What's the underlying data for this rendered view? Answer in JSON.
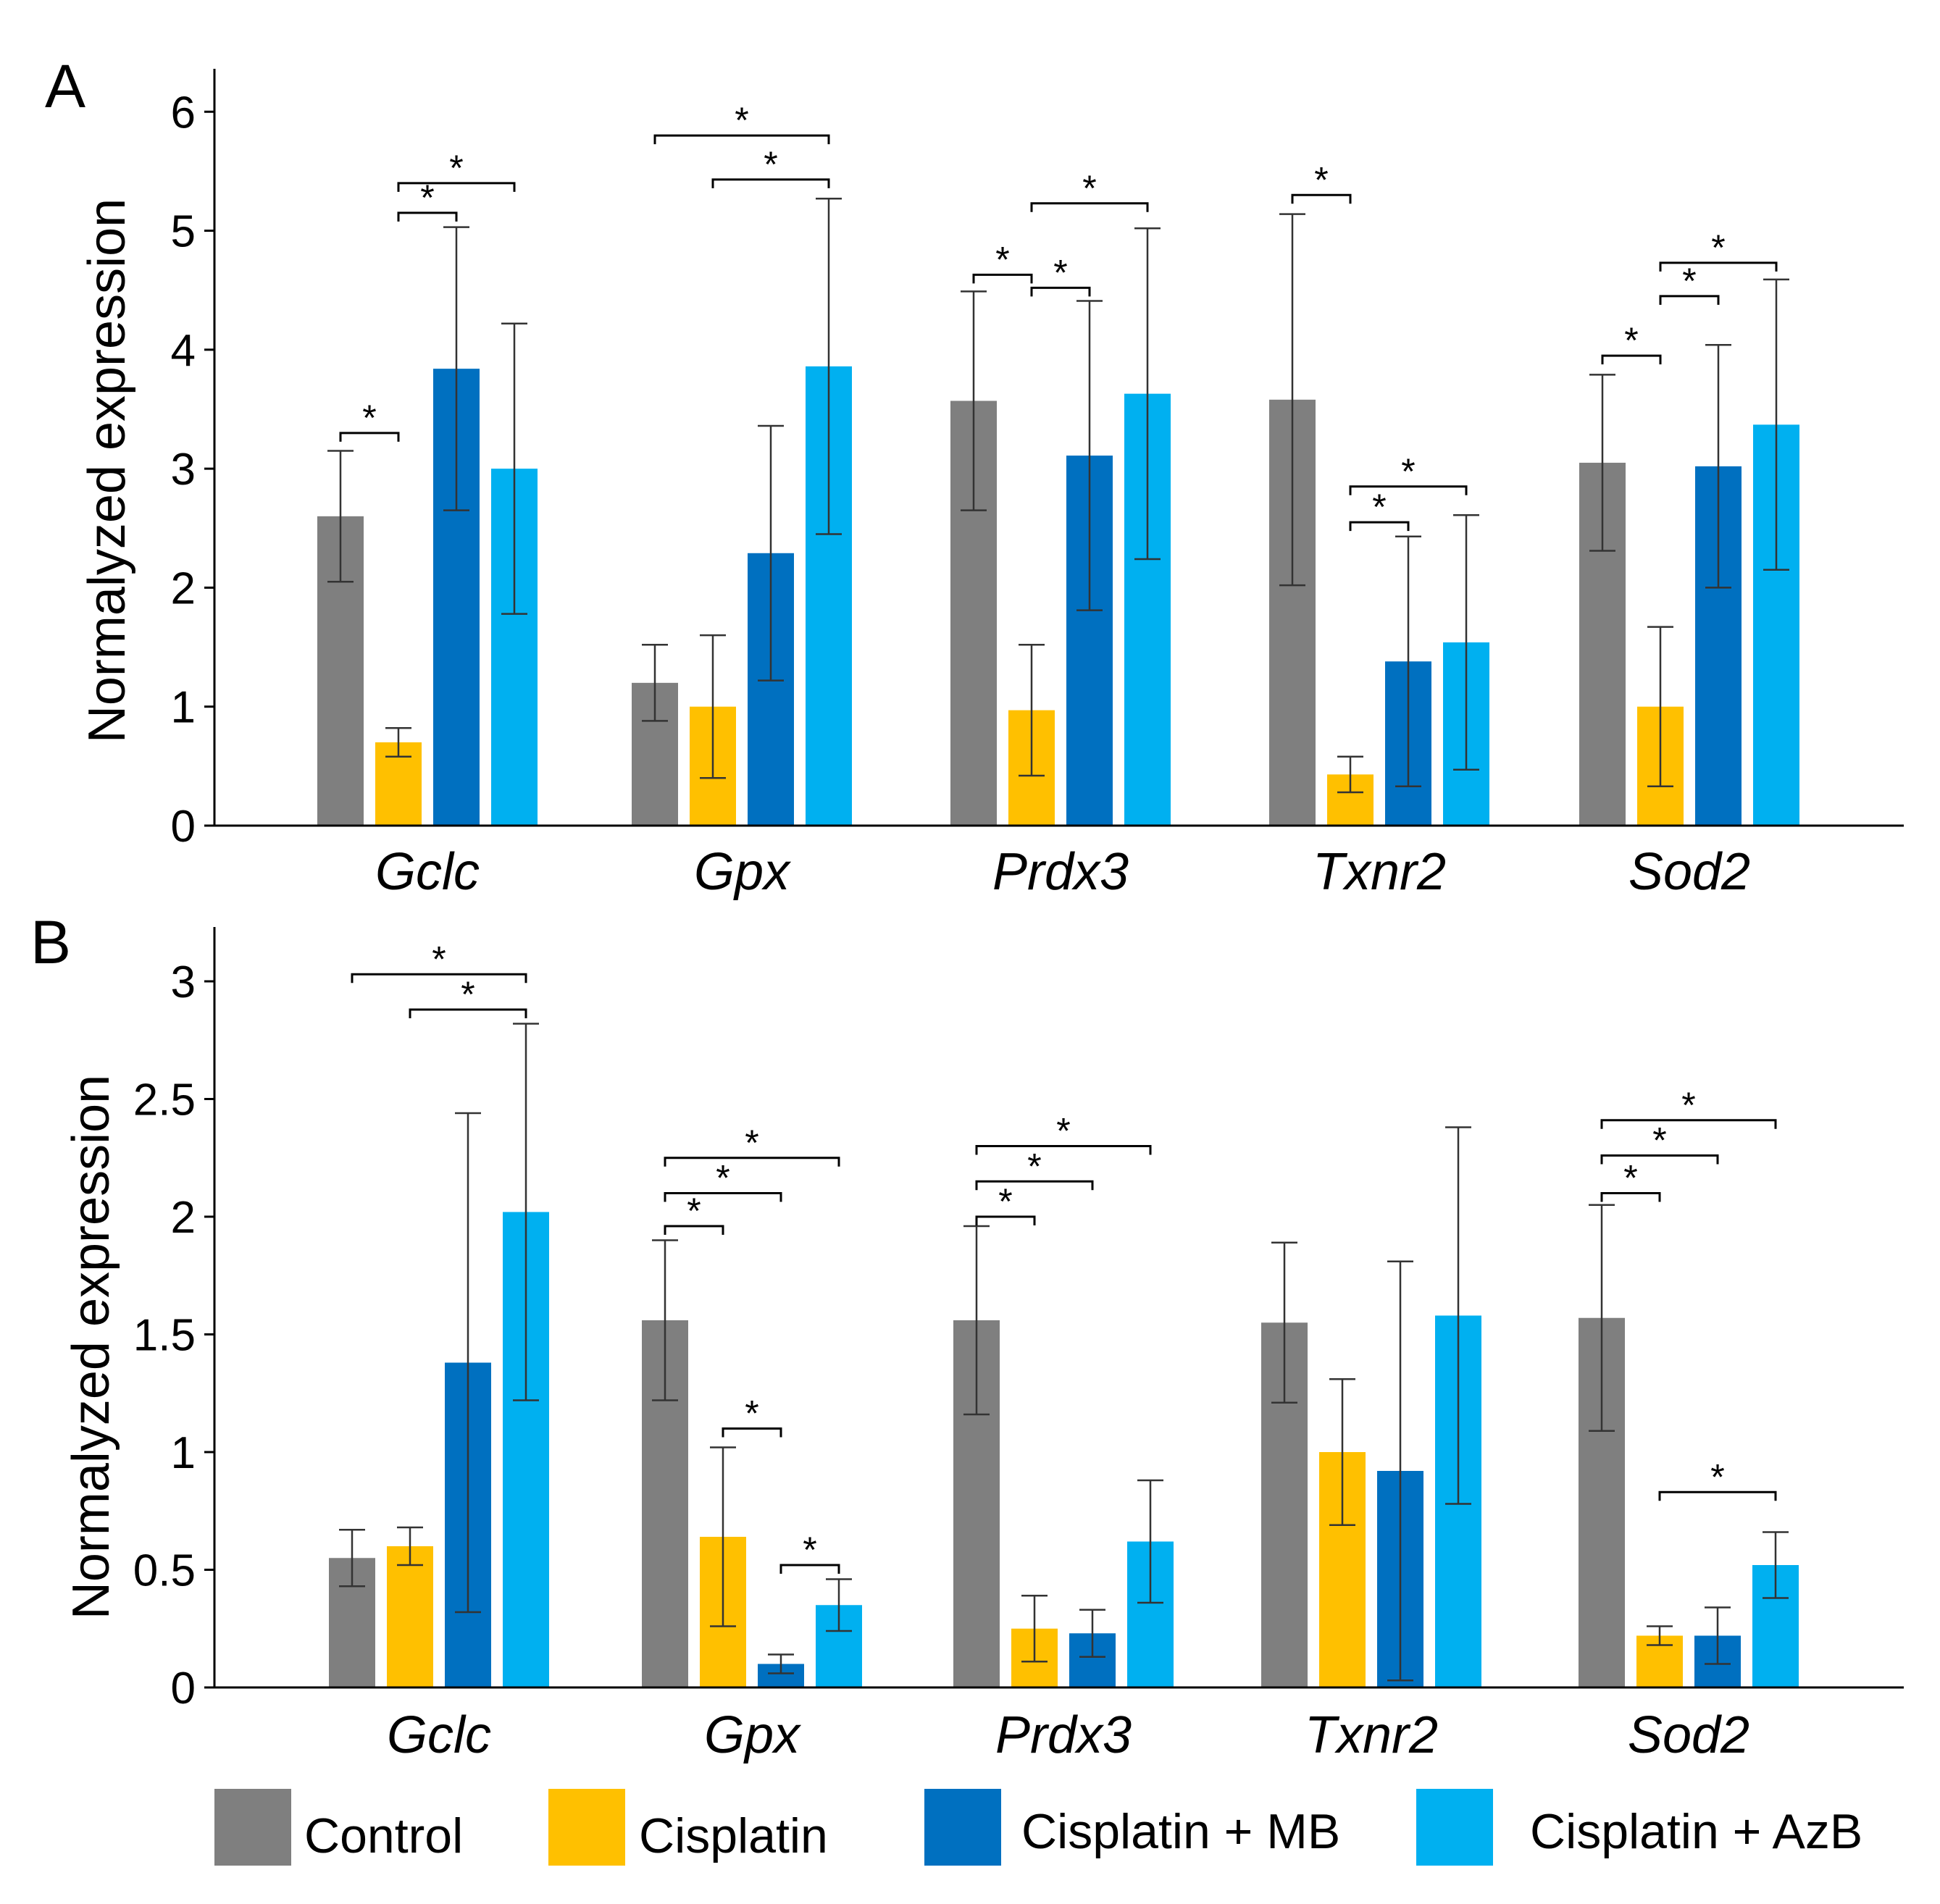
{
  "colors": {
    "Control": "#7f7f7f",
    "Cisplatin": "#ffc000",
    "Cisplatin + MB": "#0070c0",
    "Cisplatin + AzB": "#00b0f0"
  },
  "legend": [
    "Control",
    "Cisplatin",
    "Cisplatin + MB",
    "Cisplatin + AzB"
  ],
  "chart_data": [
    {
      "panel": "A",
      "type": "bar",
      "ylabel": "Normalyzed expression",
      "ylim": [
        0,
        6.3
      ],
      "yticks": [
        "0",
        "1",
        "2",
        "3",
        "4",
        "5",
        "6"
      ],
      "ytick_values": [
        0,
        1,
        2,
        3,
        4,
        5,
        6
      ],
      "categories": [
        "Gclc",
        "Gpx",
        "Prdx3",
        "Txnr2",
        "Sod2"
      ],
      "series": [
        {
          "name": "Control",
          "values": [
            2.6,
            1.2,
            3.57,
            3.58,
            3.05
          ],
          "errors": [
            0.55,
            0.32,
            0.92,
            1.56,
            0.74
          ]
        },
        {
          "name": "Cisplatin",
          "values": [
            0.7,
            1.0,
            0.97,
            0.43,
            1.0
          ],
          "errors": [
            0.12,
            0.6,
            0.55,
            0.15,
            0.67
          ]
        },
        {
          "name": "Cisplatin + MB",
          "values": [
            3.84,
            2.29,
            3.11,
            1.38,
            3.02
          ],
          "errors": [
            1.19,
            1.07,
            1.3,
            1.05,
            1.02
          ]
        },
        {
          "name": "Cisplatin + AzB",
          "values": [
            3.0,
            3.86,
            3.63,
            1.54,
            3.37
          ],
          "errors": [
            1.22,
            1.41,
            1.39,
            1.07,
            1.22
          ]
        }
      ],
      "annotations": [
        {
          "group": 0,
          "from": 0,
          "to": 1,
          "level": 3.3,
          "label": "*"
        },
        {
          "group": 0,
          "from": 1,
          "to": 2,
          "level": 5.15,
          "label": "*"
        },
        {
          "group": 0,
          "from": 1,
          "to": 3,
          "level": 5.4,
          "label": "*"
        },
        {
          "group": 1,
          "from": 0,
          "to": 3,
          "level": 5.8,
          "label": "*"
        },
        {
          "group": 1,
          "from": 1,
          "to": 3,
          "level": 5.43,
          "label": "*"
        },
        {
          "group": 2,
          "from": 0,
          "to": 1,
          "level": 4.63,
          "label": "*"
        },
        {
          "group": 2,
          "from": 1,
          "to": 2,
          "level": 4.52,
          "label": "*"
        },
        {
          "group": 2,
          "from": 1,
          "to": 3,
          "level": 5.23,
          "label": "*"
        },
        {
          "group": 3,
          "from": 0,
          "to": 1,
          "level": 5.3,
          "label": "*"
        },
        {
          "group": 3,
          "from": 1,
          "to": 2,
          "level": 2.55,
          "label": "*"
        },
        {
          "group": 3,
          "from": 1,
          "to": 3,
          "level": 2.85,
          "label": "*"
        },
        {
          "group": 4,
          "from": 0,
          "to": 1,
          "level": 3.95,
          "label": "*"
        },
        {
          "group": 4,
          "from": 1,
          "to": 2,
          "level": 4.45,
          "label": "*"
        },
        {
          "group": 4,
          "from": 1,
          "to": 3,
          "level": 4.73,
          "label": "*"
        }
      ]
    },
    {
      "panel": "B",
      "type": "bar",
      "ylabel": "Normalyzed expression",
      "ylim": [
        0,
        3.2
      ],
      "yticks": [
        "0",
        "0.5",
        "1",
        "1.5",
        "2",
        "2.5",
        "3"
      ],
      "ytick_values": [
        0,
        0.5,
        1,
        1.5,
        2,
        2.5,
        3
      ],
      "categories": [
        "Gclc",
        "Gpx",
        "Prdx3",
        "Txnr2",
        "Sod2"
      ],
      "series": [
        {
          "name": "Control",
          "values": [
            0.55,
            1.56,
            1.56,
            1.55,
            1.57
          ],
          "errors": [
            0.12,
            0.34,
            0.4,
            0.34,
            0.48
          ]
        },
        {
          "name": "Cisplatin",
          "values": [
            0.6,
            0.64,
            0.25,
            1.0,
            0.22
          ],
          "errors": [
            0.08,
            0.38,
            0.14,
            0.31,
            0.04
          ]
        },
        {
          "name": "Cisplatin + MB",
          "values": [
            1.38,
            0.1,
            0.23,
            0.92,
            0.22
          ],
          "errors": [
            1.06,
            0.04,
            0.1,
            0.89,
            0.12
          ]
        },
        {
          "name": "Cisplatin + AzB",
          "values": [
            2.02,
            0.35,
            0.62,
            1.58,
            0.52
          ],
          "errors": [
            0.8,
            0.11,
            0.26,
            0.8,
            0.14
          ]
        }
      ],
      "annotations": [
        {
          "group": 0,
          "from": 0,
          "to": 3,
          "level": 3.03,
          "label": "*"
        },
        {
          "group": 0,
          "from": 1,
          "to": 3,
          "level": 2.88,
          "label": "*"
        },
        {
          "group": 1,
          "from": 0,
          "to": 1,
          "level": 1.96,
          "label": "*"
        },
        {
          "group": 1,
          "from": 0,
          "to": 2,
          "level": 2.1,
          "label": "*"
        },
        {
          "group": 1,
          "from": 0,
          "to": 3,
          "level": 2.25,
          "label": "*"
        },
        {
          "group": 1,
          "from": 1,
          "to": 2,
          "level": 1.1,
          "label": "*"
        },
        {
          "group": 1,
          "from": 2,
          "to": 3,
          "level": 0.52,
          "label": "*"
        },
        {
          "group": 2,
          "from": 0,
          "to": 1,
          "level": 2.0,
          "label": "*"
        },
        {
          "group": 2,
          "from": 0,
          "to": 2,
          "level": 2.15,
          "label": "*"
        },
        {
          "group": 2,
          "from": 0,
          "to": 3,
          "level": 2.3,
          "label": "*"
        },
        {
          "group": 4,
          "from": 0,
          "to": 1,
          "level": 2.1,
          "label": "*"
        },
        {
          "group": 4,
          "from": 0,
          "to": 2,
          "level": 2.26,
          "label": "*"
        },
        {
          "group": 4,
          "from": 0,
          "to": 3,
          "level": 2.41,
          "label": "*"
        },
        {
          "group": 4,
          "from": 1,
          "to": 3,
          "level": 0.83,
          "label": "*"
        }
      ]
    }
  ]
}
